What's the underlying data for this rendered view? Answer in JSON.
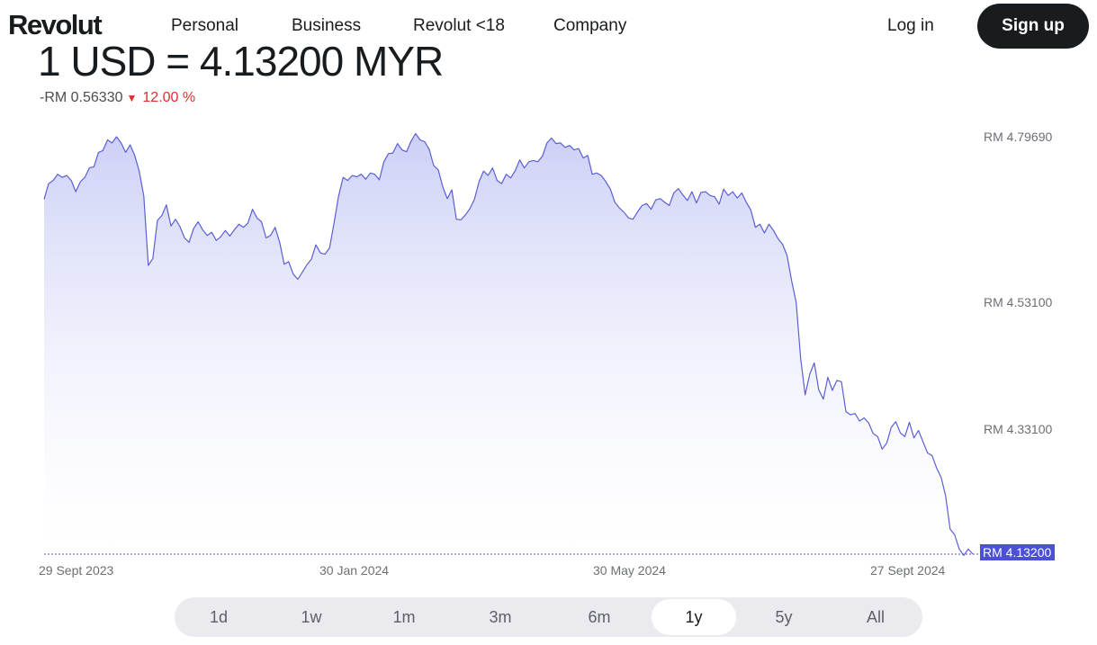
{
  "nav": {
    "logo": "Revolut",
    "items": [
      "Personal",
      "Business",
      "Revolut <18",
      "Company"
    ],
    "login": "Log in",
    "signup": "Sign up"
  },
  "rate": {
    "title": "1 USD = 4.13200 MYR",
    "change_amount": "-RM 0.56330",
    "change_percent": "12.00 %"
  },
  "colors": {
    "line": "#5b5fd6",
    "fill": "#c9cdf5",
    "current_badge": "#4b50d8",
    "change_down": "#e02d2d"
  },
  "chart_data": {
    "type": "area",
    "title": "",
    "xlabel": "",
    "ylabel": "",
    "x_ticks": [
      "29 Sept 2023",
      "30 Jan 2024",
      "30 May 2024",
      "27 Sept 2024"
    ],
    "y_ticks": [
      "RM 4.79690",
      "RM 4.53100",
      "RM 4.33100"
    ],
    "current_label": "RM 4.13200",
    "current_value": 4.132,
    "ylim": [
      4.132,
      4.8
    ],
    "grid": false,
    "x_range": [
      "2023-09-29",
      "2024-10-02"
    ],
    "series": [
      {
        "values": [
          4.7,
          4.725,
          4.73,
          4.74,
          4.735,
          4.738,
          4.73,
          4.712,
          4.728,
          4.735,
          4.75,
          4.752,
          4.775,
          4.778,
          4.795,
          4.79,
          4.8,
          4.79,
          4.775,
          4.787,
          4.77,
          4.745,
          4.705,
          4.594,
          4.605,
          4.666,
          4.674,
          4.691,
          4.657,
          4.668,
          4.656,
          4.638,
          4.631,
          4.653,
          4.664,
          4.651,
          4.642,
          4.647,
          4.634,
          4.64,
          4.65,
          4.641,
          4.651,
          4.66,
          4.655,
          4.662,
          4.684,
          4.67,
          4.664,
          4.638,
          4.642,
          4.655,
          4.631,
          4.596,
          4.6,
          4.58,
          4.572,
          4.583,
          4.595,
          4.604,
          4.627,
          4.614,
          4.612,
          4.622,
          4.662,
          4.705,
          4.735,
          4.73,
          4.738,
          4.736,
          4.74,
          4.732,
          4.742,
          4.74,
          4.731,
          4.76,
          4.773,
          4.774,
          4.789,
          4.779,
          4.776,
          4.793,
          4.805,
          4.795,
          4.792,
          4.78,
          4.754,
          4.747,
          4.72,
          4.701,
          4.715,
          4.668,
          4.667,
          4.675,
          4.685,
          4.7,
          4.728,
          4.745,
          4.738,
          4.75,
          4.73,
          4.725,
          4.74,
          4.734,
          4.746,
          4.763,
          4.75,
          4.76,
          4.762,
          4.76,
          4.769,
          4.79,
          4.798,
          4.789,
          4.79,
          4.783,
          4.786,
          4.779,
          4.781,
          4.766,
          4.77,
          4.74,
          4.742,
          4.738,
          4.728,
          4.716,
          4.695,
          4.686,
          4.679,
          4.67,
          4.668,
          4.68,
          4.69,
          4.693,
          4.684,
          4.699,
          4.701,
          4.695,
          4.69,
          4.71,
          4.717,
          4.707,
          4.698,
          4.712,
          4.694,
          4.711,
          4.712,
          4.706,
          4.704,
          4.692,
          4.716,
          4.706,
          4.712,
          4.702,
          4.71,
          4.695,
          4.683,
          4.655,
          4.66,
          4.646,
          4.66,
          4.65,
          4.637,
          4.628,
          4.61,
          4.57,
          4.535,
          4.445,
          4.387,
          4.42,
          4.438,
          4.395,
          4.38,
          4.415,
          4.394,
          4.41,
          4.408,
          4.36,
          4.355,
          4.357,
          4.345,
          4.35,
          4.342,
          4.325,
          4.32,
          4.3,
          4.31,
          4.335,
          4.344,
          4.326,
          4.32,
          4.343,
          4.318,
          4.33,
          4.312,
          4.294,
          4.29,
          4.27,
          4.255,
          4.225,
          4.172,
          4.163,
          4.14,
          4.13,
          4.14,
          4.132
        ]
      }
    ]
  },
  "ranges": {
    "items": [
      "1d",
      "1w",
      "1m",
      "3m",
      "6m",
      "1y",
      "5y",
      "All"
    ],
    "active": "1y"
  }
}
